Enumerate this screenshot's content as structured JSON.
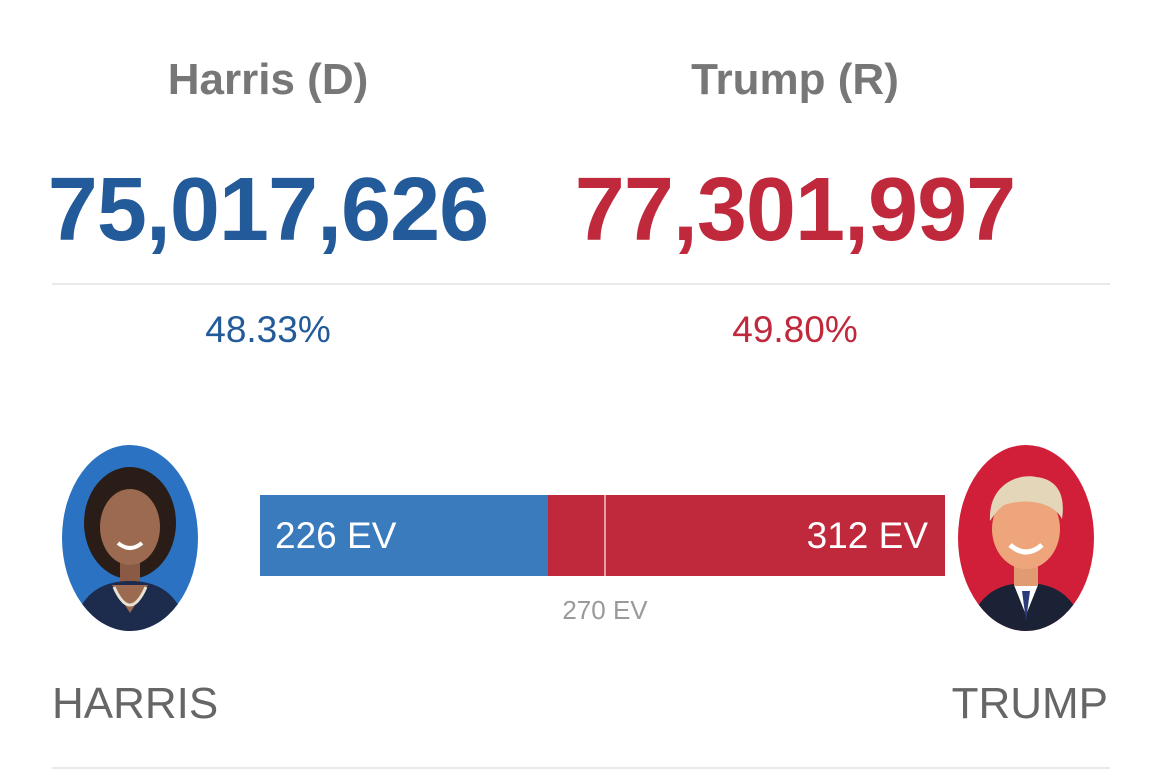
{
  "candidates": {
    "dem": {
      "name": "Harris (D)",
      "votes": "75,017,626",
      "percent": "48.33%",
      "ev_label": "226 EV",
      "ev": 226,
      "surname": "HARRIS",
      "color": "#235a99",
      "bar_color": "#3a7bbd"
    },
    "rep": {
      "name": "Trump (R)",
      "votes": "77,301,997",
      "percent": "49.80%",
      "ev_label": "312 EV",
      "ev": 312,
      "surname": "TRUMP",
      "color": "#c0283c",
      "bar_color": "#c0283c"
    }
  },
  "electoral": {
    "total": 538,
    "threshold": 270,
    "threshold_label": "270 EV"
  }
}
